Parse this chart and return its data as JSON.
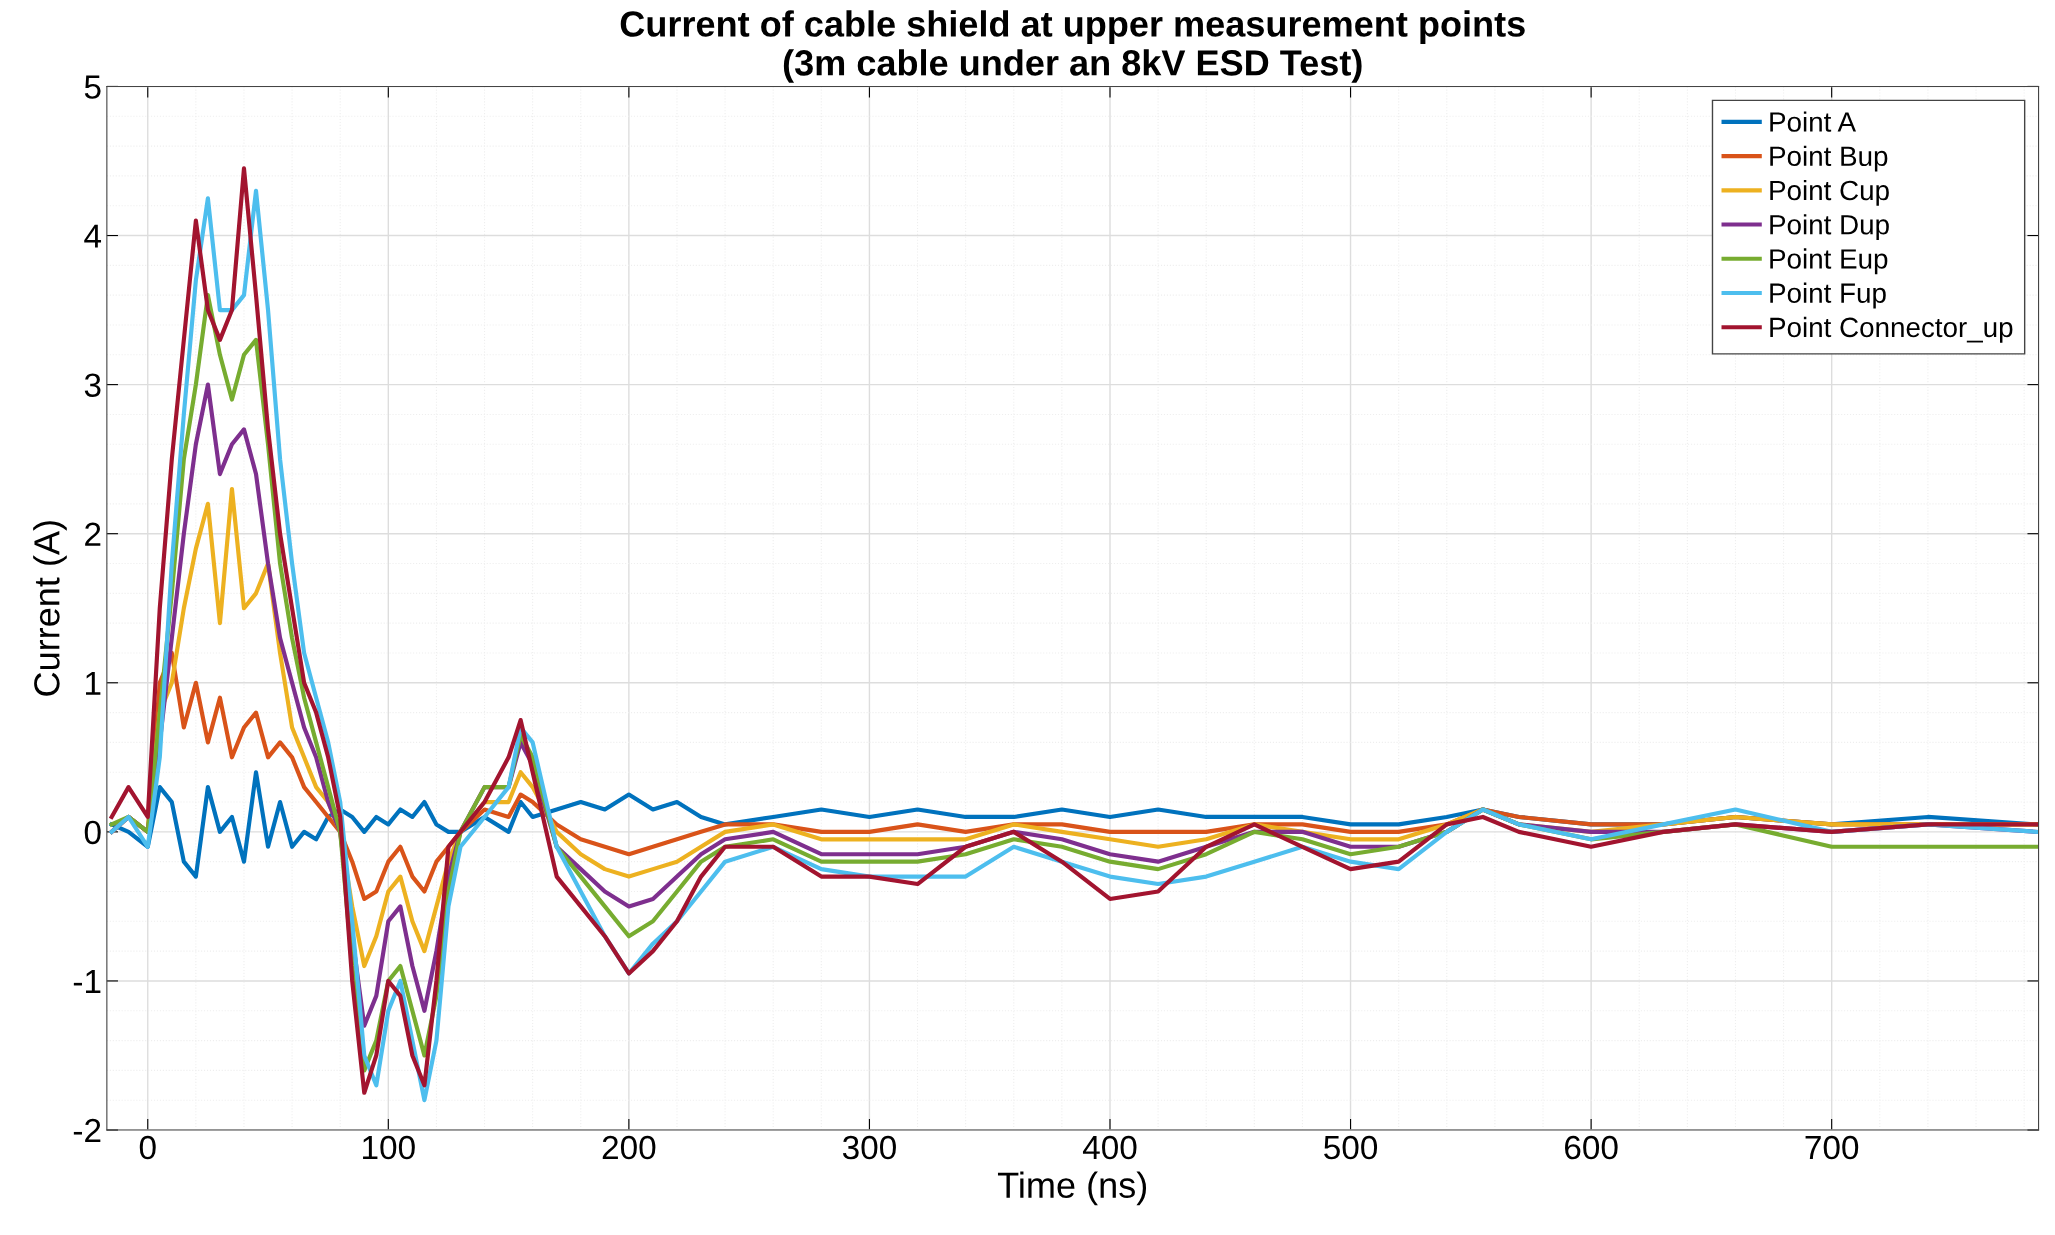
{
  "chart_data": {
    "type": "line",
    "title": "Current of cable shield at upper measurement points\n(3m cable under an 8kV ESD Test)",
    "xlabel": "Time (ns)",
    "ylabel": "Current (A)",
    "x": [
      -15,
      -8,
      0,
      5,
      10,
      15,
      20,
      25,
      30,
      35,
      40,
      45,
      50,
      55,
      60,
      65,
      70,
      75,
      80,
      85,
      90,
      95,
      100,
      105,
      110,
      115,
      120,
      125,
      130,
      140,
      150,
      155,
      160,
      170,
      180,
      190,
      200,
      210,
      220,
      230,
      240,
      260,
      280,
      300,
      320,
      340,
      360,
      380,
      400,
      420,
      440,
      460,
      480,
      500,
      520,
      540,
      555,
      570,
      600,
      630,
      660,
      700,
      740,
      785
    ],
    "series": [
      {
        "name": "Point A",
        "color": "#0072bd",
        "values": [
          0.05,
          0.0,
          -0.1,
          0.3,
          0.2,
          -0.2,
          -0.3,
          0.3,
          0.0,
          0.1,
          -0.2,
          0.4,
          -0.1,
          0.2,
          -0.1,
          0.0,
          -0.05,
          0.1,
          0.15,
          0.1,
          0.0,
          0.1,
          0.05,
          0.15,
          0.1,
          0.2,
          0.05,
          0.0,
          0.0,
          0.1,
          0.0,
          0.2,
          0.1,
          0.15,
          0.2,
          0.15,
          0.25,
          0.15,
          0.2,
          0.1,
          0.05,
          0.1,
          0.15,
          0.1,
          0.15,
          0.1,
          0.1,
          0.15,
          0.1,
          0.15,
          0.1,
          0.1,
          0.1,
          0.05,
          0.05,
          0.1,
          0.15,
          0.1,
          0.05,
          0.05,
          0.1,
          0.05,
          0.1,
          0.05
        ]
      },
      {
        "name": "Point Bup",
        "color": "#d95319",
        "values": [
          0.0,
          0.1,
          0.0,
          1.0,
          1.2,
          0.7,
          1.0,
          0.6,
          0.9,
          0.5,
          0.7,
          0.8,
          0.5,
          0.6,
          0.5,
          0.3,
          0.2,
          0.1,
          0.0,
          -0.2,
          -0.45,
          -0.4,
          -0.2,
          -0.1,
          -0.3,
          -0.4,
          -0.2,
          -0.1,
          0.0,
          0.15,
          0.1,
          0.25,
          0.2,
          0.05,
          -0.05,
          -0.1,
          -0.15,
          -0.1,
          -0.05,
          0.0,
          0.05,
          0.05,
          0.0,
          0.0,
          0.05,
          0.0,
          0.05,
          0.05,
          0.0,
          0.0,
          0.0,
          0.05,
          0.05,
          0.0,
          0.0,
          0.05,
          0.15,
          0.1,
          0.05,
          0.05,
          0.1,
          0.05,
          0.05,
          0.05
        ]
      },
      {
        "name": "Point Cup",
        "color": "#edb120",
        "values": [
          0.0,
          0.1,
          0.0,
          0.8,
          1.0,
          1.5,
          1.9,
          2.2,
          1.4,
          2.3,
          1.5,
          1.6,
          1.8,
          1.2,
          0.7,
          0.5,
          0.3,
          0.2,
          0.0,
          -0.5,
          -0.9,
          -0.7,
          -0.4,
          -0.3,
          -0.6,
          -0.8,
          -0.5,
          -0.2,
          0.0,
          0.2,
          0.2,
          0.4,
          0.3,
          0.0,
          -0.15,
          -0.25,
          -0.3,
          -0.25,
          -0.2,
          -0.1,
          0.0,
          0.05,
          -0.05,
          -0.05,
          -0.05,
          -0.05,
          0.05,
          0.0,
          -0.05,
          -0.1,
          -0.05,
          0.05,
          0.0,
          -0.05,
          -0.05,
          0.05,
          0.15,
          0.05,
          0.0,
          0.05,
          0.1,
          0.05,
          0.05,
          0.05
        ]
      },
      {
        "name": "Point Dup",
        "color": "#7e2f8e",
        "values": [
          0.0,
          0.1,
          0.0,
          0.6,
          1.3,
          2.0,
          2.6,
          3.0,
          2.4,
          2.6,
          2.7,
          2.4,
          1.8,
          1.3,
          1.0,
          0.7,
          0.5,
          0.2,
          0.0,
          -0.7,
          -1.3,
          -1.1,
          -0.6,
          -0.5,
          -0.9,
          -1.2,
          -0.8,
          -0.3,
          0.0,
          0.3,
          0.3,
          0.6,
          0.45,
          -0.1,
          -0.25,
          -0.4,
          -0.5,
          -0.45,
          -0.3,
          -0.15,
          -0.05,
          0.0,
          -0.15,
          -0.15,
          -0.15,
          -0.1,
          0.0,
          -0.05,
          -0.15,
          -0.2,
          -0.1,
          0.0,
          0.0,
          -0.1,
          -0.1,
          0.0,
          0.15,
          0.05,
          0.0,
          0.0,
          0.05,
          0.0,
          0.05,
          0.0
        ]
      },
      {
        "name": "Point Eup",
        "color": "#77ac30",
        "values": [
          0.05,
          0.1,
          0.0,
          0.8,
          1.6,
          2.5,
          3.0,
          3.6,
          3.2,
          2.9,
          3.2,
          3.3,
          2.6,
          1.8,
          1.3,
          0.9,
          0.6,
          0.3,
          0.0,
          -0.9,
          -1.6,
          -1.4,
          -1.0,
          -0.9,
          -1.2,
          -1.5,
          -1.1,
          -0.4,
          0.0,
          0.3,
          0.3,
          0.65,
          0.5,
          -0.1,
          -0.3,
          -0.5,
          -0.7,
          -0.6,
          -0.4,
          -0.2,
          -0.1,
          -0.05,
          -0.2,
          -0.2,
          -0.2,
          -0.15,
          -0.05,
          -0.1,
          -0.2,
          -0.25,
          -0.15,
          0.0,
          -0.05,
          -0.15,
          -0.1,
          0.0,
          0.15,
          0.05,
          -0.05,
          0.0,
          0.05,
          -0.1,
          -0.1,
          -0.1
        ]
      },
      {
        "name": "Point Fup",
        "color": "#4dbeee",
        "values": [
          0.0,
          0.1,
          -0.1,
          0.5,
          1.8,
          2.8,
          3.7,
          4.25,
          3.5,
          3.5,
          3.6,
          4.3,
          3.5,
          2.5,
          1.8,
          1.2,
          0.9,
          0.6,
          0.2,
          -0.6,
          -1.5,
          -1.7,
          -1.2,
          -1.0,
          -1.4,
          -1.8,
          -1.4,
          -0.5,
          -0.1,
          0.1,
          0.3,
          0.7,
          0.6,
          -0.1,
          -0.4,
          -0.7,
          -0.95,
          -0.75,
          -0.6,
          -0.4,
          -0.2,
          -0.1,
          -0.25,
          -0.3,
          -0.3,
          -0.3,
          -0.1,
          -0.2,
          -0.3,
          -0.35,
          -0.3,
          -0.2,
          -0.1,
          -0.2,
          -0.25,
          0.0,
          0.15,
          0.05,
          -0.05,
          0.05,
          0.15,
          0.0,
          0.05,
          0.0
        ]
      },
      {
        "name": "Point Connector_up",
        "color": "#a2142f",
        "values": [
          0.1,
          0.3,
          0.1,
          1.5,
          2.5,
          3.3,
          4.1,
          3.5,
          3.3,
          3.5,
          4.45,
          3.6,
          2.7,
          2.0,
          1.5,
          1.0,
          0.8,
          0.5,
          0.1,
          -1.0,
          -1.75,
          -1.5,
          -1.0,
          -1.1,
          -1.5,
          -1.7,
          -1.0,
          -0.1,
          0.0,
          0.2,
          0.5,
          0.75,
          0.4,
          -0.3,
          -0.5,
          -0.7,
          -0.95,
          -0.8,
          -0.6,
          -0.3,
          -0.1,
          -0.1,
          -0.3,
          -0.3,
          -0.35,
          -0.1,
          0.0,
          -0.2,
          -0.45,
          -0.4,
          -0.1,
          0.05,
          -0.1,
          -0.25,
          -0.2,
          0.05,
          0.1,
          0.0,
          -0.1,
          0.0,
          0.05,
          0.0,
          0.05,
          0.05
        ]
      }
    ],
    "xlim": [
      -17,
      786
    ],
    "xticks": [
      0,
      100,
      200,
      300,
      400,
      500,
      600,
      700
    ],
    "ylim": [
      -2,
      5
    ],
    "yticks": [
      -2,
      -1,
      0,
      1,
      2,
      3,
      4,
      5
    ],
    "grid": true,
    "legend": "top right",
    "line_style": "solid",
    "marker": "none"
  }
}
